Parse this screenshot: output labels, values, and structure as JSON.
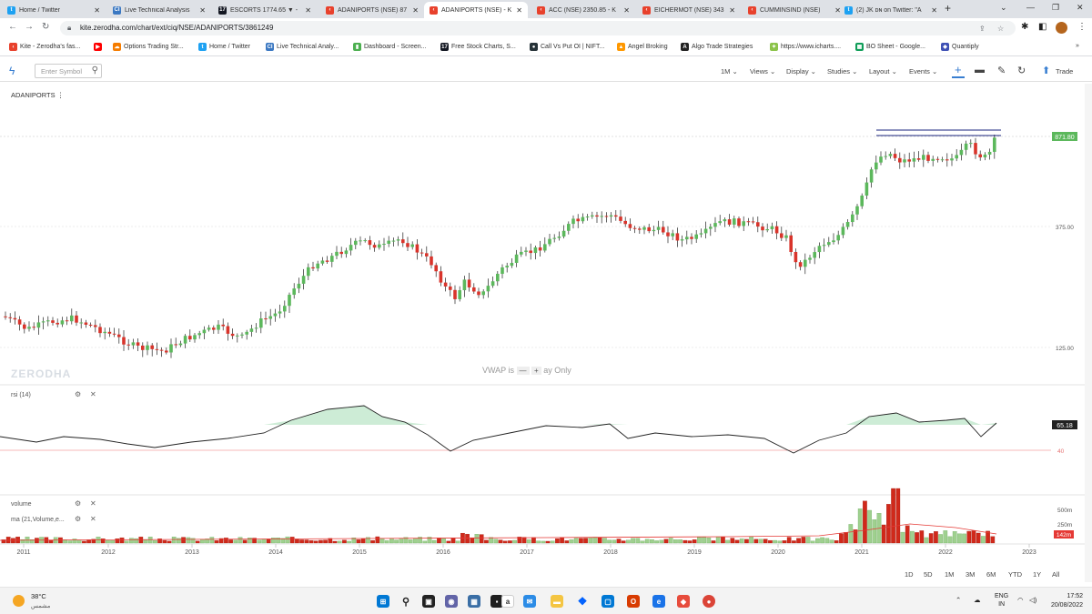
{
  "browser": {
    "tabs": [
      {
        "title": "Home / Twitter",
        "icon": "twitter-icon",
        "color": "#1da1f2",
        "glyph": "t"
      },
      {
        "title": "Live Technical Analysis",
        "icon": "chartink-icon",
        "color": "#3b78c2",
        "glyph": "CI"
      },
      {
        "title": "ESCORTS 1774.65 ▼ -",
        "icon": "tradingview-icon",
        "color": "#131722",
        "glyph": "17"
      },
      {
        "title": "ADANIPORTS (NSE) 87",
        "icon": "kite-icon",
        "color": "#e8412c",
        "glyph": "‹"
      },
      {
        "title": "ADANIPORTS (NSE) - K",
        "icon": "kite-icon",
        "color": "#e8412c",
        "glyph": "‹"
      },
      {
        "title": "ACC (NSE) 2350.85 - K",
        "icon": "kite-icon",
        "color": "#e8412c",
        "glyph": "‹"
      },
      {
        "title": "EICHERMOT (NSE) 343",
        "icon": "kite-icon",
        "color": "#e8412c",
        "glyph": "‹"
      },
      {
        "title": "CUMMINSIND (NSE)",
        "icon": "kite-icon",
        "color": "#e8412c",
        "glyph": "‹"
      },
      {
        "title": "(2) JK ᴅɴ on Twitter: \"A",
        "icon": "twitter-icon",
        "color": "#1da1f2",
        "glyph": "t"
      }
    ],
    "url": "kite.zerodha.com/chart/ext/ciq/NSE/ADANIPORTS/3861249",
    "bookmarks": [
      {
        "label": "Kite - Zerodha's fas...",
        "color": "#e8412c",
        "glyph": "‹"
      },
      {
        "label": "",
        "color": "#ff0000",
        "glyph": "▶"
      },
      {
        "label": "Options Trading Str...",
        "color": "#f57c00",
        "glyph": "☁"
      },
      {
        "label": "Home / Twitter",
        "color": "#1da1f2",
        "glyph": "t"
      },
      {
        "label": "Live Technical Analy...",
        "color": "#3b78c2",
        "glyph": "CI"
      },
      {
        "label": "Dashboard - Screen...",
        "color": "#4caf50",
        "glyph": "▮"
      },
      {
        "label": "Free Stock Charts, S...",
        "color": "#131722",
        "glyph": "17"
      },
      {
        "label": "Call Vs Put OI | NIFT...",
        "color": "#263238",
        "glyph": "●"
      },
      {
        "label": "Angel Broking",
        "color": "#ff9800",
        "glyph": "▲"
      },
      {
        "label": "Algo Trade Strategies",
        "color": "#222222",
        "glyph": "A"
      },
      {
        "label": "https://www.icharts....",
        "color": "#8bc34a",
        "glyph": "✦"
      },
      {
        "label": "BO Sheet - Google...",
        "color": "#0f9d58",
        "glyph": "▦"
      },
      {
        "label": "Quantiply",
        "color": "#3f51b5",
        "glyph": "◆"
      }
    ],
    "more_bookmarks": "»"
  },
  "toolbar": {
    "search_placeholder": "Enter Symbol",
    "interval": "1M",
    "views": "Views",
    "display": "Display",
    "studies": "Studies",
    "layout": "Layout",
    "events": "Events",
    "trade": "Trade"
  },
  "chart": {
    "symbol": "ADANIPORTS",
    "watermark": "ZERODHA",
    "vwap_note": "VWAP is",
    "vwap_note_tail": "ay Only",
    "last_price_label": "871.80",
    "price_ticks": [
      "375.00",
      "125.00"
    ],
    "rsi_label": "rsi (14)",
    "rsi_value": "65.18",
    "rsi_level": "40",
    "volume_label": "volume",
    "ma_label": "ma (21,Volume,e...",
    "volume_ticks": [
      "500m",
      "250m"
    ],
    "volume_badge": "142m",
    "years": [
      "2011",
      "2012",
      "2013",
      "2014",
      "2015",
      "2016",
      "2017",
      "2018",
      "2019",
      "2020",
      "2021",
      "2022",
      "2023"
    ],
    "ranges": [
      "1D",
      "5D",
      "1M",
      "3M",
      "6M",
      "YTD",
      "1Y",
      "All"
    ],
    "colors": {
      "up": "#5cb85c",
      "down": "#d9342b",
      "rsi_fill": "#c8ead2",
      "volume_up": "#9fd08f",
      "volume_down": "#d0291b",
      "ma_line": "#e53935",
      "price_badge": "#5cb85c",
      "rsi_badge": "#222222",
      "volume_badge": "#e53935"
    }
  },
  "taskbar": {
    "temperature": "38°C",
    "weather_desc": "مشمس",
    "language": "ENG",
    "region": "IN",
    "time": "17:52",
    "date": "20/08/2022"
  }
}
